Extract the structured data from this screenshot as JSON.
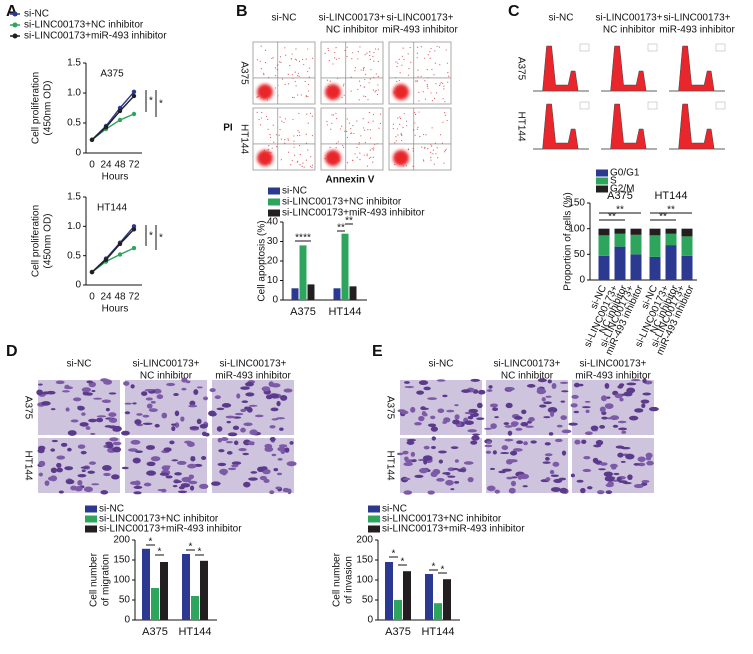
{
  "figure": {
    "panel_labels": [
      "A",
      "B",
      "C",
      "D",
      "E"
    ],
    "image_panels": [
      {
        "columns": [
          [
            "si-NC"
          ],
          [
            "si-LINC00173+",
            "NC inhibitor"
          ],
          [
            "si-LINC00173+",
            "miR-493 inhibitor"
          ]
        ],
        "rows": [
          "A375",
          "HT144"
        ],
        "ylabel": "PI",
        "xlabel": "Annexin V"
      },
      {
        "columns": [
          [
            "si-NC"
          ],
          [
            "si-LINC00173+",
            "NC inhibitor"
          ],
          [
            "si-LINC00173+",
            "miR-493 inhibitor"
          ]
        ],
        "rows": [
          "A375",
          "HT144"
        ]
      },
      {
        "columns": [
          [
            "si-NC"
          ],
          [
            "si-LINC00173+",
            "NC inhibitor"
          ],
          [
            "si-LINC00173+",
            "miR-493 inhibitor"
          ]
        ],
        "rows": [
          "A375",
          "HT144"
        ]
      },
      {
        "columns": [
          [
            "si-NC"
          ],
          [
            "si-LINC00173+",
            "NC inhibitor"
          ],
          [
            "si-LINC00173+",
            "miR-493 inhibitor"
          ]
        ],
        "rows": [
          "A375",
          "HT144"
        ]
      }
    ]
  },
  "chart_data": [
    {
      "type": "line",
      "title": "A375",
      "xlabel": "Hours",
      "ylabel": [
        "Cell proliferation",
        "(450nm OD)"
      ],
      "categories": [
        "0",
        "24",
        "48",
        "72"
      ],
      "ylim": [
        0,
        1.5
      ],
      "yticks": [
        0,
        0.5,
        {
          "value": 1,
          "label": "1.0"
        },
        1.5
      ],
      "series": [
        {
          "name": "si-NC",
          "color": "#2b3990",
          "values": [
            0.22,
            0.45,
            0.75,
            1.02
          ]
        },
        {
          "name": "si-LINC00173+NC inhibitor",
          "color": "#2ea55c",
          "values": [
            0.22,
            0.4,
            0.55,
            0.65
          ]
        },
        {
          "name": "si-LINC00173+miR-493 inhibitor",
          "color": "#231f20",
          "values": [
            0.22,
            0.43,
            0.7,
            0.95
          ]
        }
      ],
      "annotations": [
        "*",
        "*"
      ]
    },
    {
      "type": "line",
      "title": "HT144",
      "xlabel": "Hours",
      "ylabel": [
        "Cell proliferation",
        "(450nm OD)"
      ],
      "categories": [
        "0",
        "24",
        "48",
        "72"
      ],
      "ylim": [
        0,
        1.5
      ],
      "yticks": [
        0,
        0.5,
        {
          "value": 1,
          "label": "1.0"
        },
        1.5
      ],
      "series": [
        {
          "color": "#2b3990",
          "values": [
            0.22,
            0.45,
            0.72,
            1.0
          ]
        },
        {
          "color": "#2ea55c",
          "values": [
            0.22,
            0.4,
            0.52,
            0.63
          ]
        },
        {
          "color": "#231f20",
          "values": [
            0.22,
            0.43,
            0.7,
            0.95
          ]
        }
      ],
      "annotations": [
        "*",
        "*"
      ]
    },
    {
      "type": "bar",
      "ylabel": [
        "Cell apoptosis (%)"
      ],
      "categories": [
        "A375",
        "HT144"
      ],
      "ylim": [
        0,
        40
      ],
      "yticks": [
        0,
        10,
        20,
        30,
        40
      ],
      "series": [
        {
          "name": "si-NC",
          "color": "#2b3990",
          "values": [
            6,
            6
          ]
        },
        {
          "name": "si-LINC00173+NC inhibitor",
          "color": "#2ea55c",
          "values": [
            28,
            34
          ]
        },
        {
          "name": "si-LINC00173+miR-493 inhibitor",
          "color": "#231f20",
          "values": [
            8,
            7
          ]
        }
      ],
      "annotations": [
        "**",
        "**",
        "**",
        "**"
      ]
    },
    {
      "type": "stacked_bar",
      "ylabel": [
        "Proportion of cells (%)"
      ],
      "groups": [
        "A375",
        "HT144"
      ],
      "categories": [
        [
          "si-NC"
        ],
        [
          "si-LINC00173+",
          "NC inhibitor"
        ],
        [
          "si-LINC00173+",
          "miR-493 inhibitor"
        ],
        [
          "si-NC"
        ],
        [
          "si-LINC00173+",
          "NC inhibitor"
        ],
        [
          "si-LINC00173+",
          "miR-493 inhibitor"
        ]
      ],
      "ylim": [
        0,
        150
      ],
      "yticks": [
        0,
        50,
        100,
        150
      ],
      "series": [
        {
          "name": "G0/G1",
          "color": "#2b3990",
          "values": [
            47,
            65,
            50,
            45,
            68,
            47
          ]
        },
        {
          "name": "S",
          "color": "#2ea55c",
          "values": [
            40,
            25,
            38,
            42,
            22,
            38
          ]
        },
        {
          "name": "G2/M",
          "color": "#231f20",
          "values": [
            13,
            10,
            12,
            13,
            10,
            15
          ]
        }
      ],
      "annotations": [
        "**",
        "**",
        "**",
        "**"
      ]
    },
    {
      "type": "bar",
      "ylabel": [
        "Cell number",
        "of migration"
      ],
      "categories": [
        "A375",
        "HT144"
      ],
      "ylim": [
        0,
        200
      ],
      "yticks": [
        0,
        50,
        100,
        150,
        200
      ],
      "series": [
        {
          "name": "si-NC",
          "color": "#2b3990",
          "values": [
            178,
            165
          ]
        },
        {
          "name": "si-LINC00173+NC inhibitor",
          "color": "#2ea55c",
          "values": [
            80,
            60
          ]
        },
        {
          "name": "si-LINC00173+miR-493 inhibitor",
          "color": "#231f20",
          "values": [
            145,
            148
          ]
        }
      ],
      "annotations": [
        "*",
        "*",
        "*",
        "*"
      ]
    },
    {
      "type": "bar",
      "ylabel": [
        "Cell number",
        "of invasion"
      ],
      "categories": [
        "A375",
        "HT144"
      ],
      "ylim": [
        0,
        200
      ],
      "yticks": [
        0,
        50,
        100,
        150,
        200
      ],
      "series": [
        {
          "name": "si-NC",
          "color": "#2b3990",
          "values": [
            145,
            115
          ]
        },
        {
          "name": "si-LINC00173+NC inhibitor",
          "color": "#2ea55c",
          "values": [
            50,
            42
          ]
        },
        {
          "name": "si-LINC00173+miR-493 inhibitor",
          "color": "#231f20",
          "values": [
            122,
            102
          ]
        }
      ],
      "annotations": [
        "*",
        "*",
        "*",
        "*"
      ]
    }
  ]
}
